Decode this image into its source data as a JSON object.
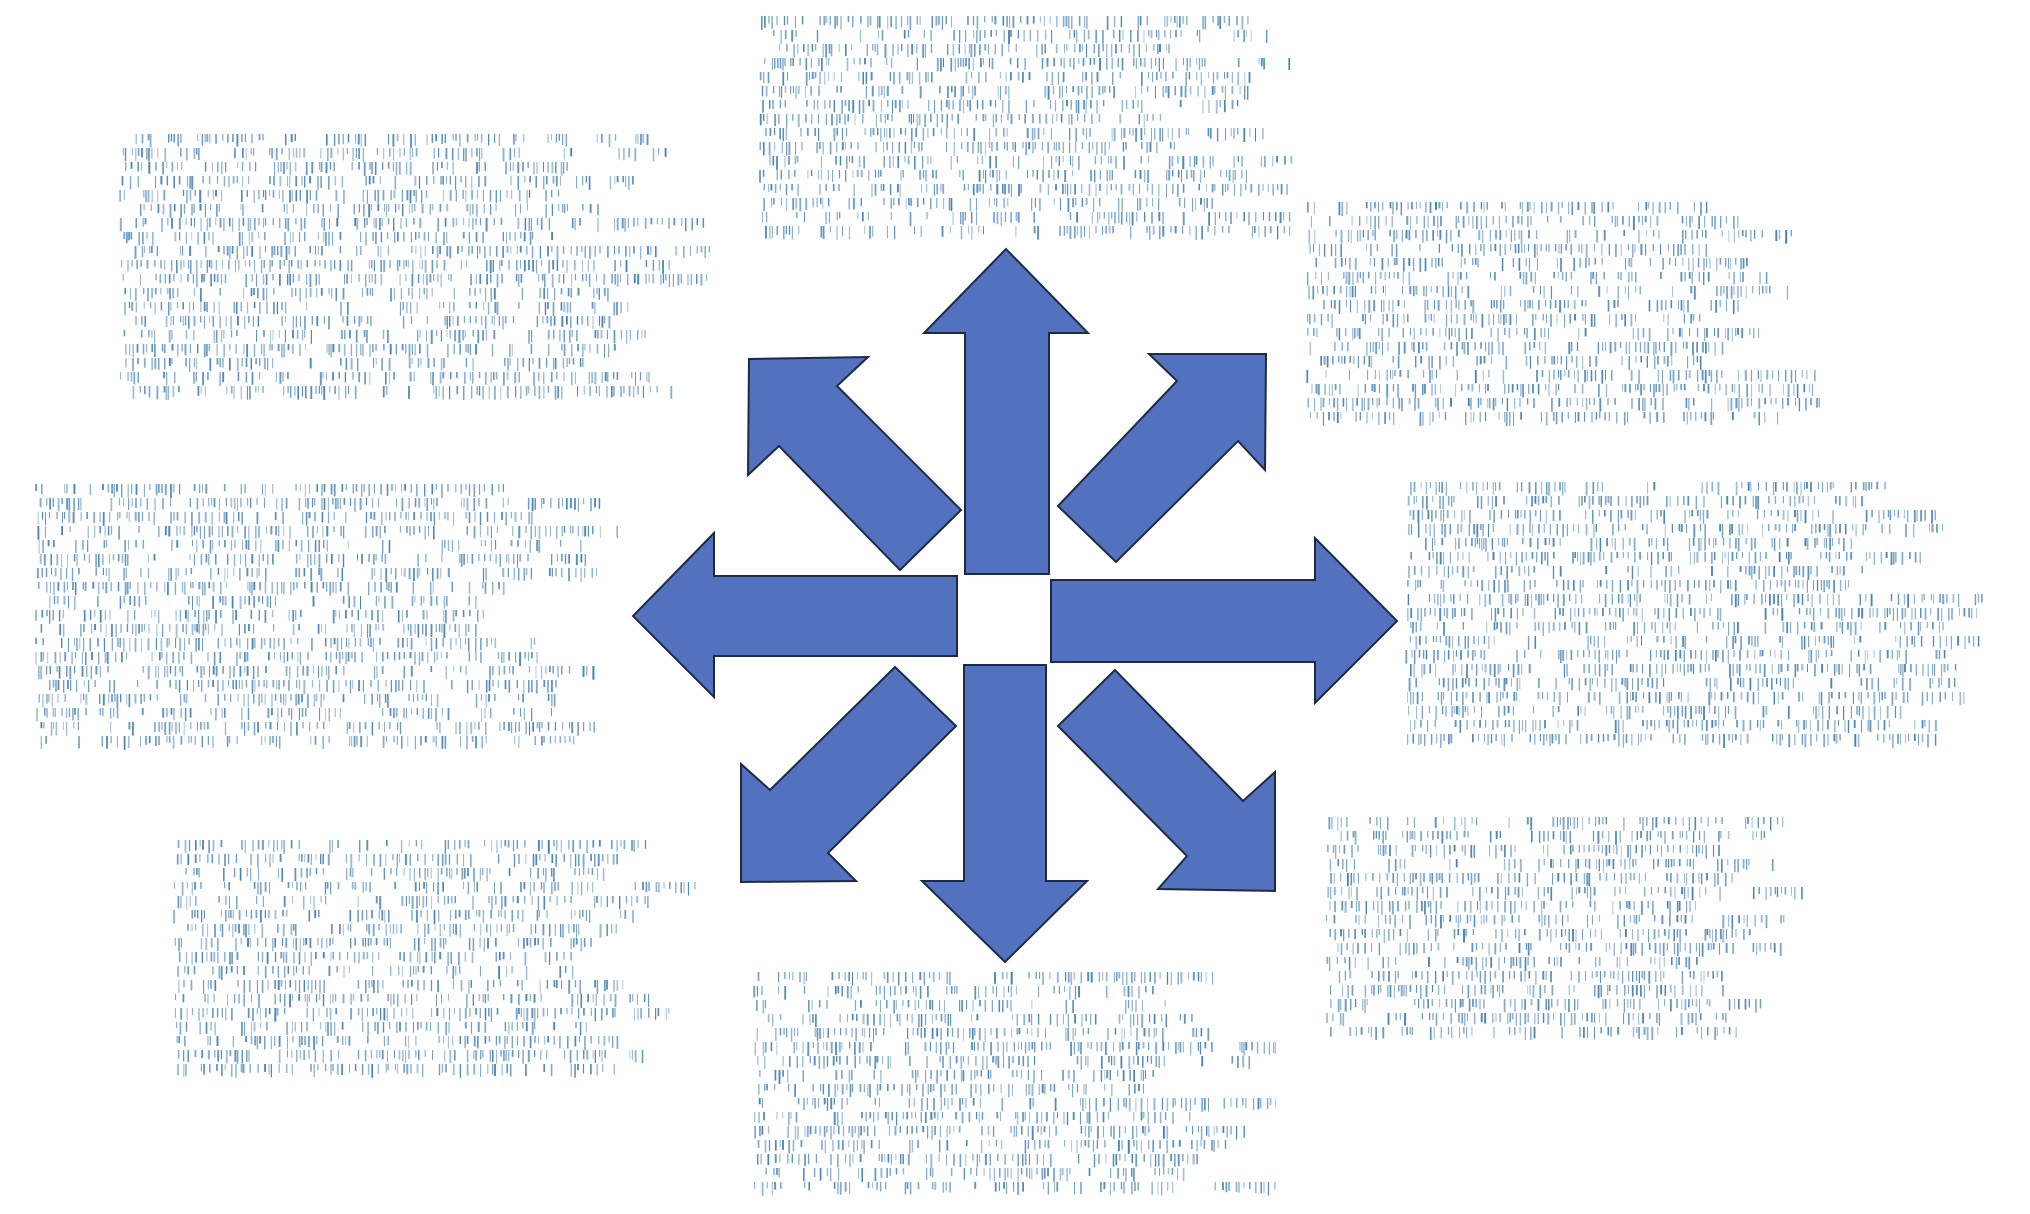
{
  "diagram": {
    "arrow_fill": "#5272c0",
    "arrow_stroke": "#1e2a44",
    "text_color": "#3f7cae",
    "arrows": [
      {
        "name": "arrow-up-icon",
        "direction": "up"
      },
      {
        "name": "arrow-up-right-icon",
        "direction": "up-right"
      },
      {
        "name": "arrow-right-icon",
        "direction": "right"
      },
      {
        "name": "arrow-down-right-icon",
        "direction": "down-right"
      },
      {
        "name": "arrow-down-icon",
        "direction": "down"
      },
      {
        "name": "arrow-down-left-icon",
        "direction": "down-left"
      },
      {
        "name": "arrow-left-icon",
        "direction": "left"
      },
      {
        "name": "arrow-up-left-icon",
        "direction": "up-left"
      }
    ],
    "text_blocks": [
      {
        "name": "text-block-top",
        "position": "top"
      },
      {
        "name": "text-block-top-left",
        "position": "top-left"
      },
      {
        "name": "text-block-top-right",
        "position": "top-right"
      },
      {
        "name": "text-block-left",
        "position": "left"
      },
      {
        "name": "text-block-right",
        "position": "right"
      },
      {
        "name": "text-block-bottom-left",
        "position": "bottom-left"
      },
      {
        "name": "text-block-bottom",
        "position": "bottom"
      },
      {
        "name": "text-block-bottom-right",
        "position": "bottom-right"
      }
    ]
  }
}
